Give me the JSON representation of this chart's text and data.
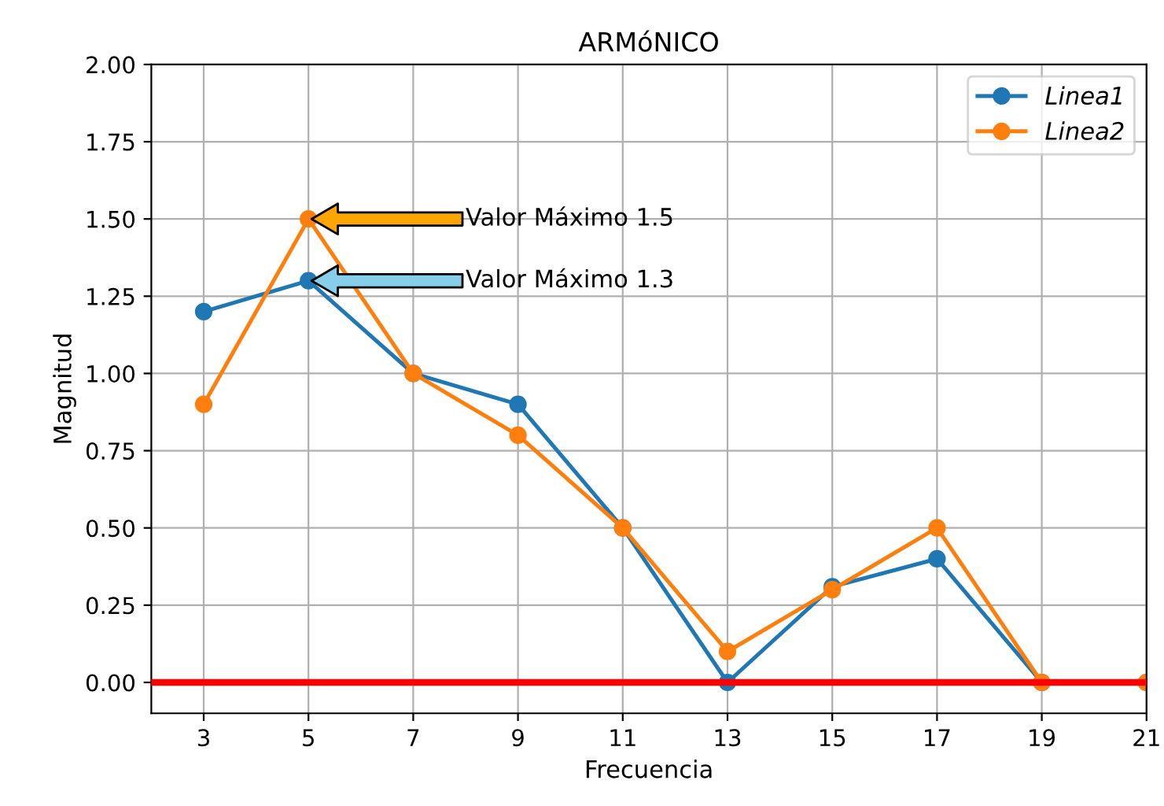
{
  "chart_data": {
    "type": "line",
    "title": "ARMóNICO",
    "xlabel": "Frecuencia",
    "ylabel": "Magnitud",
    "x": [
      3,
      5,
      7,
      9,
      11,
      13,
      15,
      17,
      19,
      21
    ],
    "series": [
      {
        "name": "Linea1",
        "color": "#1f77b4",
        "values": [
          1.2,
          1.3,
          1.0,
          0.9,
          0.5,
          0.0,
          0.31,
          0.4,
          0.0,
          0.0
        ]
      },
      {
        "name": "Linea2",
        "color": "#ff7f0e",
        "values": [
          0.9,
          1.5,
          1.0,
          0.8,
          0.5,
          0.1,
          0.3,
          0.5,
          0.0,
          0.0
        ]
      }
    ],
    "xlim": [
      2,
      21
    ],
    "xticks": [
      3,
      5,
      7,
      9,
      11,
      13,
      15,
      17,
      19,
      21
    ],
    "ylim": [
      -0.1,
      2.0
    ],
    "yticks": [
      {
        "value": 0,
        "label": "0.00"
      },
      {
        "value": 0.25,
        "label": "0.25"
      },
      {
        "value": 0.5,
        "label": "0.50"
      },
      {
        "value": 0.75,
        "label": "0.75"
      },
      {
        "value": 1.0,
        "label": "1.00"
      },
      {
        "value": 1.25,
        "label": "1.25"
      },
      {
        "value": 1.5,
        "label": "1.50"
      },
      {
        "value": 1.75,
        "label": "1.75"
      },
      {
        "value": 2.0,
        "label": "2.00"
      }
    ],
    "ref_lines": [
      {
        "axis": "y",
        "value": 0,
        "color": "#ff0000",
        "line_style": "solid"
      }
    ],
    "annotations": [
      "Valor Máximo 1.5",
      "Valor Máximo 1.3"
    ],
    "grid": true,
    "legend": "top right",
    "marker": "circle",
    "line_style": "solid"
  }
}
